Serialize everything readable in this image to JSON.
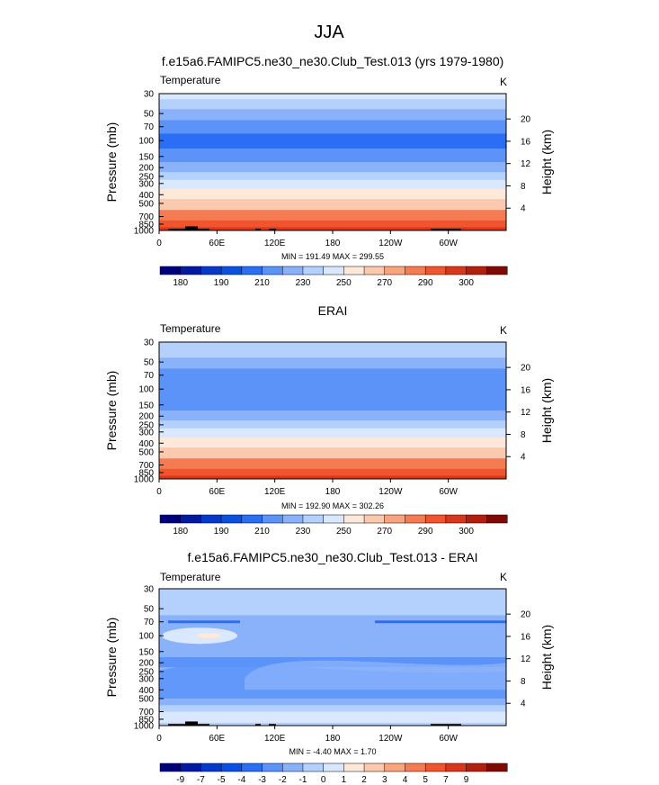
{
  "figure_title": "JJA",
  "colors": {
    "cold_palette": [
      "#00007f",
      "#0219a1",
      "#0638c9",
      "#0a50e3",
      "#2a6ef5",
      "#5b93f9",
      "#8ab2fb",
      "#b4d0fd",
      "#d9e8fe",
      "#fde8da",
      "#fbc9ad",
      "#f9a47e",
      "#f57c52",
      "#f0552e",
      "#d9371c",
      "#b21f0f",
      "#7f0a05"
    ]
  },
  "chart_data": [
    {
      "type": "heatmap",
      "title": "f.e15a6.FAMIPC5.ne30_ne30.Club_Test.013 (yrs 1979-1980)",
      "variable": "Temperature",
      "units": "K",
      "ylabel": "Pressure (mb)",
      "ylabel_right": "Height (km)",
      "ylim": [
        1000,
        30
      ],
      "yticks": [
        "30",
        "50",
        "70",
        "100",
        "150",
        "200",
        "250",
        "300",
        "400",
        "500",
        "700",
        "850",
        "1000"
      ],
      "yticks_right": [
        "20",
        "16",
        "12",
        "8",
        "4"
      ],
      "xticks": [
        "0",
        "60E",
        "120E",
        "180",
        "120W",
        "60W"
      ],
      "stats_text": "MIN = 191.49  MAX = 299.55",
      "colorbar_labels": [
        "180",
        "190",
        "210",
        "230",
        "250",
        "270",
        "290",
        "300"
      ],
      "profile_levels": [
        {
          "p": 30,
          "t": 232
        },
        {
          "p": 40,
          "t": 222
        },
        {
          "p": 50,
          "t": 214
        },
        {
          "p": 70,
          "t": 206
        },
        {
          "p": 100,
          "t": 200
        },
        {
          "p": 150,
          "t": 208
        },
        {
          "p": 200,
          "t": 218
        },
        {
          "p": 250,
          "t": 225
        },
        {
          "p": 300,
          "t": 232
        },
        {
          "p": 400,
          "t": 245
        },
        {
          "p": 500,
          "t": 257
        },
        {
          "p": 700,
          "t": 272
        },
        {
          "p": 850,
          "t": 283
        },
        {
          "p": 1000,
          "t": 292
        }
      ],
      "has_topography": true
    },
    {
      "type": "heatmap",
      "title": "ERAI",
      "variable": "Temperature",
      "units": "K",
      "ylabel": "Pressure (mb)",
      "ylabel_right": "Height (km)",
      "ylim": [
        1000,
        30
      ],
      "yticks": [
        "30",
        "50",
        "70",
        "100",
        "150",
        "200",
        "250",
        "300",
        "400",
        "500",
        "700",
        "850",
        "1000"
      ],
      "yticks_right": [
        "20",
        "16",
        "12",
        "8",
        "4"
      ],
      "xticks": [
        "0",
        "60E",
        "120E",
        "180",
        "120W",
        "60W"
      ],
      "stats_text": "MIN = 192.90  MAX = 302.26",
      "colorbar_labels": [
        "180",
        "190",
        "210",
        "230",
        "250",
        "270",
        "290",
        "300"
      ],
      "profile_levels": [
        {
          "p": 30,
          "t": 230
        },
        {
          "p": 40,
          "t": 222
        },
        {
          "p": 50,
          "t": 215
        },
        {
          "p": 70,
          "t": 207
        },
        {
          "p": 100,
          "t": 201
        },
        {
          "p": 150,
          "t": 209
        },
        {
          "p": 200,
          "t": 219
        },
        {
          "p": 250,
          "t": 226
        },
        {
          "p": 300,
          "t": 233
        },
        {
          "p": 400,
          "t": 246
        },
        {
          "p": 500,
          "t": 258
        },
        {
          "p": 700,
          "t": 273
        },
        {
          "p": 850,
          "t": 284
        },
        {
          "p": 1000,
          "t": 293
        }
      ],
      "has_topography": false
    },
    {
      "type": "heatmap",
      "title": "f.e15a6.FAMIPC5.ne30_ne30.Club_Test.013 - ERAI",
      "variable": "Temperature",
      "units": "K",
      "ylabel": "Pressure (mb)",
      "ylabel_right": "Height (km)",
      "ylim": [
        1000,
        30
      ],
      "yticks": [
        "30",
        "50",
        "70",
        "100",
        "150",
        "200",
        "250",
        "300",
        "400",
        "500",
        "700",
        "850",
        "1000"
      ],
      "yticks_right": [
        "20",
        "16",
        "12",
        "8",
        "4"
      ],
      "xticks": [
        "0",
        "60E",
        "120E",
        "180",
        "120W",
        "60W"
      ],
      "stats_text": "MIN = -4.40  MAX =  1.70",
      "colorbar_labels": [
        "-9",
        "-7",
        "-5",
        "-4",
        "-3",
        "-2",
        "-1",
        "0",
        "1",
        "2",
        "3",
        "4",
        "5",
        "7",
        "9"
      ],
      "profile_levels": [
        {
          "p": 30,
          "t": -0.5
        },
        {
          "p": 50,
          "t": -0.5
        },
        {
          "p": 70,
          "t": -1.5
        },
        {
          "p": 100,
          "t": -1.5
        },
        {
          "p": 150,
          "t": -1.5
        },
        {
          "p": 200,
          "t": -2.5
        },
        {
          "p": 250,
          "t": -1.5
        },
        {
          "p": 300,
          "t": -1.5
        },
        {
          "p": 400,
          "t": -1.5
        },
        {
          "p": 500,
          "t": -1.5
        },
        {
          "p": 700,
          "t": -0.5
        },
        {
          "p": 850,
          "t": -0.5
        },
        {
          "p": 1000,
          "t": -0.5
        }
      ],
      "has_topography": true
    }
  ]
}
